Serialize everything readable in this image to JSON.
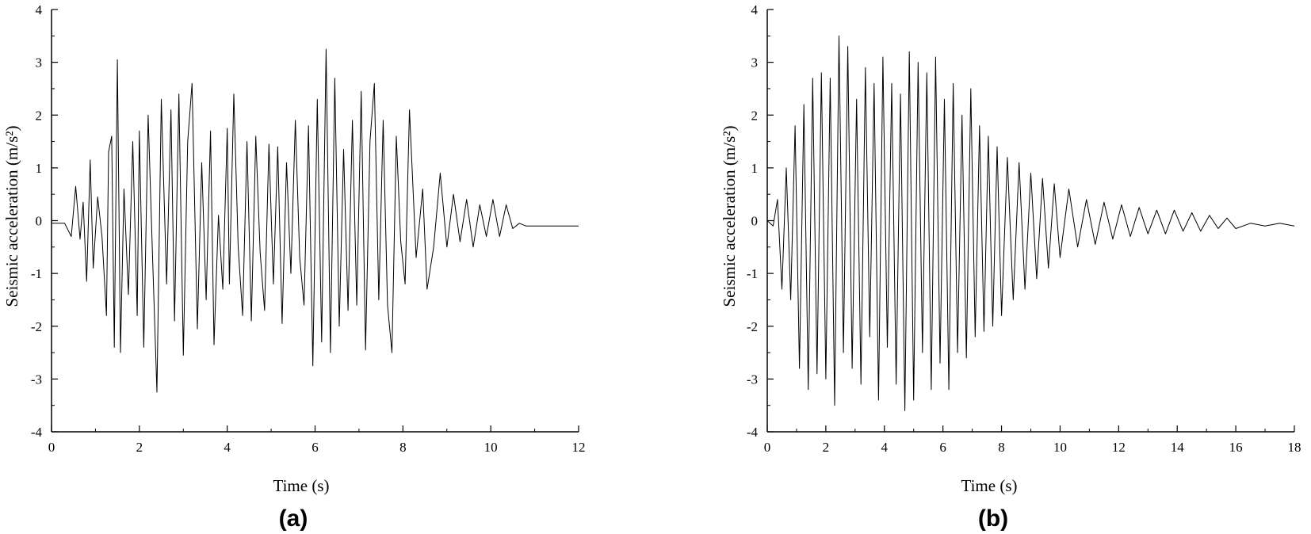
{
  "chart_data": [
    {
      "type": "line",
      "panel_label": "(a)",
      "xlabel": "Time (s)",
      "ylabel": "Seismic acceleration (m/s²)",
      "xlim": [
        0,
        12
      ],
      "ylim": [
        -4,
        4
      ],
      "xticks": [
        0,
        2,
        4,
        6,
        8,
        10,
        12
      ],
      "yticks": [
        -4,
        -3,
        -2,
        -1,
        0,
        1,
        2,
        3,
        4
      ],
      "grid": false,
      "line_color": "#000000",
      "series": [
        {
          "x": [
            0,
            0.3,
            0.45,
            0.55,
            0.65,
            0.72,
            0.8,
            0.88,
            0.95,
            1.05,
            1.15,
            1.25,
            1.3,
            1.37,
            1.43,
            1.5,
            1.57,
            1.65,
            1.75,
            1.85,
            1.95,
            2.0,
            2.1,
            2.2,
            2.3,
            2.4,
            2.5,
            2.62,
            2.72,
            2.8,
            2.9,
            3.0,
            3.1,
            3.2,
            3.32,
            3.42,
            3.52,
            3.62,
            3.7,
            3.8,
            3.9,
            4.0,
            4.05,
            4.15,
            4.25,
            4.35,
            4.45,
            4.55,
            4.65,
            4.75,
            4.85,
            4.95,
            5.05,
            5.15,
            5.25,
            5.35,
            5.45,
            5.55,
            5.65,
            5.75,
            5.85,
            5.95,
            6.05,
            6.15,
            6.25,
            6.35,
            6.45,
            6.55,
            6.65,
            6.75,
            6.85,
            6.95,
            7.05,
            7.15,
            7.25,
            7.35,
            7.45,
            7.55,
            7.65,
            7.75,
            7.85,
            7.95,
            8.05,
            8.15,
            8.3,
            8.45,
            8.55,
            8.7,
            8.85,
            9.0,
            9.15,
            9.3,
            9.45,
            9.6,
            9.75,
            9.9,
            10.05,
            10.2,
            10.35,
            10.5,
            10.65,
            10.8,
            11.0,
            11.5,
            12.0
          ],
          "y": [
            -0.05,
            -0.05,
            -0.3,
            0.65,
            -0.35,
            0.35,
            -1.15,
            1.15,
            -0.9,
            0.45,
            -0.3,
            -1.8,
            1.3,
            1.6,
            -2.4,
            3.05,
            -2.5,
            0.6,
            -1.4,
            1.5,
            -1.8,
            1.7,
            -2.4,
            2.0,
            -0.7,
            -3.25,
            2.3,
            -1.2,
            2.1,
            -1.9,
            2.4,
            -2.55,
            1.5,
            2.6,
            -2.05,
            1.1,
            -1.5,
            1.7,
            -2.35,
            0.1,
            -1.3,
            1.75,
            -1.2,
            2.4,
            -0.5,
            -1.8,
            1.5,
            -1.9,
            1.6,
            -0.6,
            -1.7,
            1.45,
            -1.2,
            1.4,
            -1.95,
            1.1,
            -1.0,
            1.9,
            -0.7,
            -1.6,
            1.8,
            -2.75,
            2.3,
            -2.3,
            3.25,
            -2.5,
            2.7,
            -2.0,
            1.35,
            -1.7,
            1.9,
            -1.6,
            2.45,
            -2.45,
            1.5,
            2.6,
            -1.5,
            1.9,
            -1.6,
            -2.5,
            1.6,
            -0.4,
            -1.2,
            2.1,
            -0.7,
            0.6,
            -1.3,
            -0.5,
            0.9,
            -0.5,
            0.5,
            -0.4,
            0.4,
            -0.5,
            0.3,
            -0.3,
            0.4,
            -0.3,
            0.3,
            -0.15,
            -0.05,
            -0.1,
            -0.1,
            -0.1,
            -0.1
          ]
        }
      ]
    },
    {
      "type": "line",
      "panel_label": "(b)",
      "xlabel": "Time (s)",
      "ylabel": "Seismic acceleration (m/s²)",
      "xlim": [
        0,
        18
      ],
      "ylim": [
        -4,
        4
      ],
      "xticks": [
        0,
        2,
        4,
        6,
        8,
        10,
        12,
        14,
        16,
        18
      ],
      "yticks": [
        -4,
        -3,
        -2,
        -1,
        0,
        1,
        2,
        3,
        4
      ],
      "grid": false,
      "line_color": "#000000",
      "series": [
        {
          "x": [
            0,
            0.2,
            0.35,
            0.5,
            0.65,
            0.8,
            0.95,
            1.1,
            1.25,
            1.4,
            1.55,
            1.7,
            1.85,
            2.0,
            2.15,
            2.3,
            2.45,
            2.6,
            2.75,
            2.9,
            3.05,
            3.2,
            3.35,
            3.5,
            3.65,
            3.8,
            3.95,
            4.1,
            4.25,
            4.4,
            4.55,
            4.7,
            4.85,
            5.0,
            5.15,
            5.3,
            5.45,
            5.6,
            5.75,
            5.9,
            6.05,
            6.2,
            6.35,
            6.5,
            6.65,
            6.8,
            6.95,
            7.1,
            7.25,
            7.4,
            7.55,
            7.7,
            7.85,
            8.0,
            8.2,
            8.4,
            8.6,
            8.8,
            9.0,
            9.2,
            9.4,
            9.6,
            9.8,
            10.0,
            10.3,
            10.6,
            10.9,
            11.2,
            11.5,
            11.8,
            12.1,
            12.4,
            12.7,
            13.0,
            13.3,
            13.6,
            13.9,
            14.2,
            14.5,
            14.8,
            15.1,
            15.4,
            15.7,
            16.0,
            16.5,
            17.0,
            17.5,
            18.0
          ],
          "y": [
            0,
            -0.1,
            0.4,
            -1.3,
            1.0,
            -1.5,
            1.8,
            -2.8,
            2.2,
            -3.2,
            2.7,
            -2.9,
            2.8,
            -3.0,
            2.7,
            -3.5,
            3.5,
            -2.5,
            3.3,
            -2.8,
            2.3,
            -3.1,
            2.9,
            -2.2,
            2.6,
            -3.4,
            3.1,
            -2.4,
            2.6,
            -3.1,
            2.4,
            -3.6,
            3.2,
            -3.4,
            3.0,
            -2.5,
            2.8,
            -3.2,
            3.1,
            -2.7,
            2.3,
            -3.2,
            2.6,
            -2.5,
            2.0,
            -2.6,
            2.5,
            -2.2,
            1.8,
            -2.1,
            1.6,
            -2.0,
            1.4,
            -1.8,
            1.2,
            -1.5,
            1.1,
            -1.3,
            0.9,
            -1.1,
            0.8,
            -0.9,
            0.7,
            -0.7,
            0.6,
            -0.5,
            0.4,
            -0.45,
            0.35,
            -0.35,
            0.3,
            -0.3,
            0.25,
            -0.25,
            0.2,
            -0.25,
            0.2,
            -0.2,
            0.15,
            -0.2,
            0.1,
            -0.15,
            0.05,
            -0.15,
            -0.05,
            -0.1,
            -0.05,
            -0.1
          ]
        }
      ]
    }
  ]
}
